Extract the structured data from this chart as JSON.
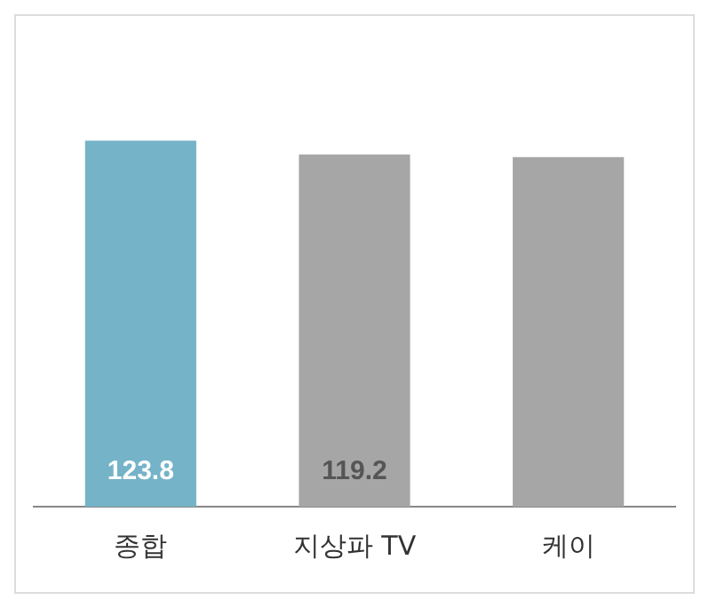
{
  "chart_data": {
    "type": "bar",
    "categories": [
      "종합",
      "지상파 TV",
      "케이"
    ],
    "values": [
      123.8,
      119.2,
      118.3
    ],
    "colors": [
      "#74b3c8",
      "#a6a6a6",
      "#a6a6a6"
    ],
    "value_labels": [
      "123.8",
      "119.2",
      null
    ],
    "grid": false,
    "legend": false
  }
}
